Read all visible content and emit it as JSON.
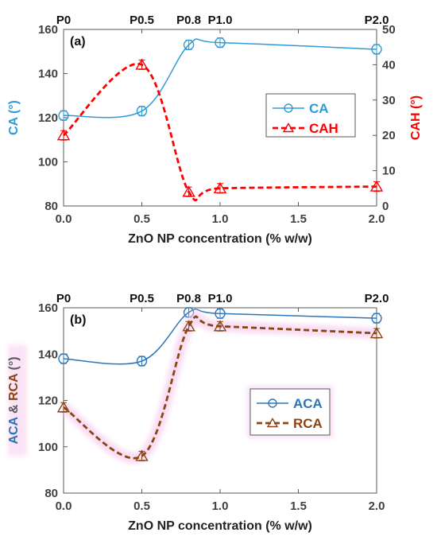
{
  "colors": {
    "ca": "#2E9BD6",
    "cah": "#FF0000",
    "aca": "#2E75B6",
    "rca": "#8B4513",
    "axis": "#595959",
    "glow": "#F7CDEF"
  },
  "chart_data": [
    {
      "type": "line",
      "panel_label": "(a)",
      "xlabel": "ZnO NP concentration (% w/w)",
      "ylabel": "CA (°)",
      "y2label": "CAH (°)",
      "xlim": [
        0,
        2
      ],
      "ylim": [
        80,
        160
      ],
      "y2lim": [
        0,
        50
      ],
      "xticks": [
        "0.0",
        "0.5",
        "1.0",
        "1.5",
        "2.0"
      ],
      "yticks": [
        "80",
        "100",
        "120",
        "140",
        "160"
      ],
      "y2ticks": [
        "0",
        "10",
        "20",
        "30",
        "40",
        "50"
      ],
      "top_labels": [
        {
          "x": 0,
          "label": "P0"
        },
        {
          "x": 0.5,
          "label": "P0.5"
        },
        {
          "x": 0.8,
          "label": "P0.8"
        },
        {
          "x": 1.0,
          "label": "P1.0"
        },
        {
          "x": 2.0,
          "label": "P2.0"
        }
      ],
      "legend_position": "center-right",
      "series": [
        {
          "name": "CA",
          "axis": "left",
          "marker": "circle",
          "dash": false,
          "color_key": "ca",
          "x": [
            0,
            0.5,
            0.8,
            1.0,
            2.0
          ],
          "y": [
            121,
            123,
            153,
            154,
            151
          ]
        },
        {
          "name": "CAH",
          "axis": "right",
          "marker": "triangle",
          "dash": true,
          "color_key": "cah",
          "x": [
            0,
            0.5,
            0.8,
            1.0,
            2.0
          ],
          "y": [
            20,
            40,
            4,
            5,
            5.5
          ]
        }
      ]
    },
    {
      "type": "line",
      "panel_label": "(b)",
      "xlabel": "ZnO NP concentration (% w/w)",
      "ylabel_parts": [
        {
          "text": "ACA",
          "color_key": "aca"
        },
        {
          "text": " & ",
          "color_key": "axis"
        },
        {
          "text": "RCA",
          "color_key": "rca"
        },
        {
          "text": " (°)",
          "color_key": "axis"
        }
      ],
      "xlim": [
        0,
        2
      ],
      "ylim": [
        80,
        160
      ],
      "xticks": [
        "0.0",
        "0.5",
        "1.0",
        "1.5",
        "2.0"
      ],
      "yticks": [
        "80",
        "100",
        "120",
        "140",
        "160"
      ],
      "top_labels": [
        {
          "x": 0,
          "label": "P0"
        },
        {
          "x": 0.5,
          "label": "P0.5"
        },
        {
          "x": 0.8,
          "label": "P0.8"
        },
        {
          "x": 1.0,
          "label": "P1.0"
        },
        {
          "x": 2.0,
          "label": "P2.0"
        }
      ],
      "legend_position": "center-right",
      "series": [
        {
          "name": "ACA",
          "axis": "left",
          "marker": "circle",
          "dash": false,
          "color_key": "aca",
          "x": [
            0,
            0.5,
            0.8,
            1.0,
            2.0
          ],
          "y": [
            138,
            137,
            158,
            157.5,
            155.5
          ]
        },
        {
          "name": "RCA",
          "axis": "left",
          "marker": "triangle",
          "dash": true,
          "color_key": "rca",
          "x": [
            0,
            0.5,
            0.8,
            1.0,
            2.0
          ],
          "y": [
            117,
            96,
            152,
            152,
            149
          ]
        }
      ]
    }
  ]
}
